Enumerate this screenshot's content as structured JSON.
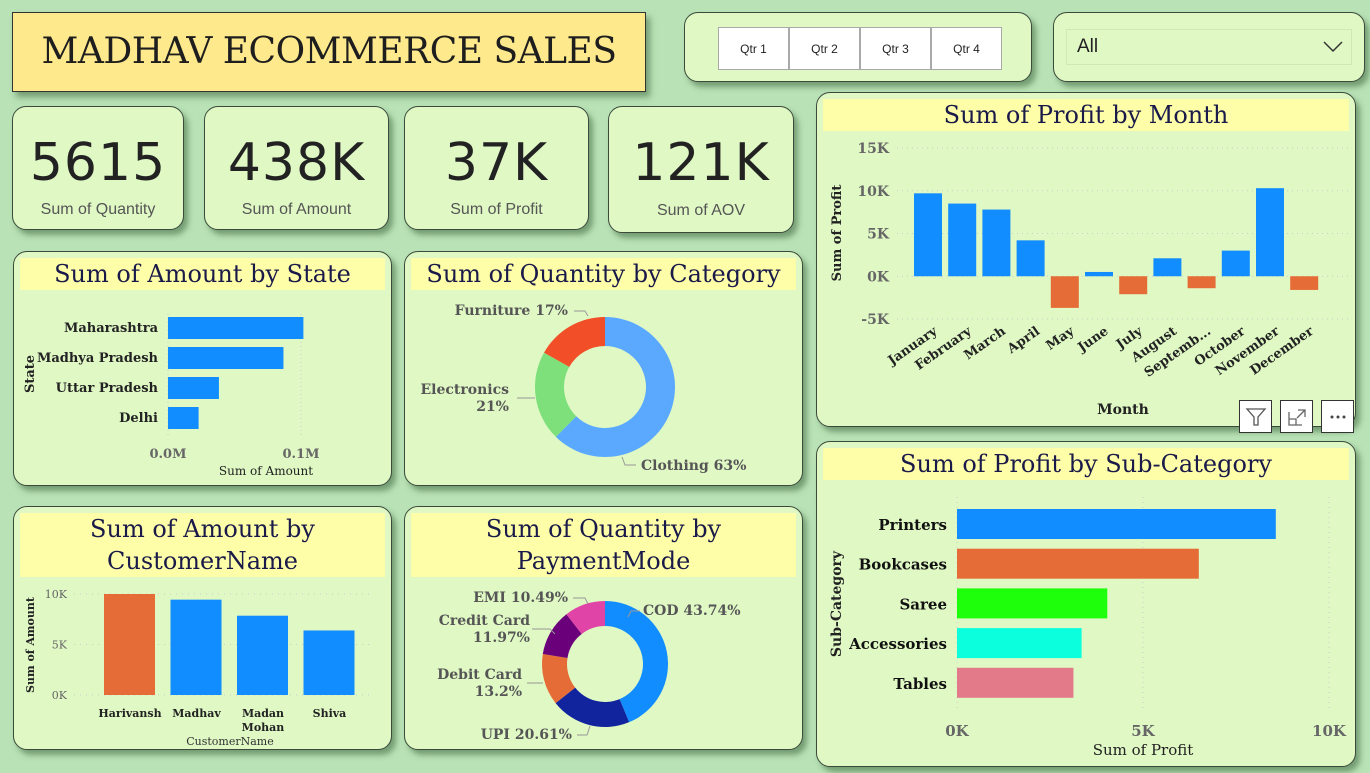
{
  "header": {
    "title": "MADHAV ECOMMERCE SALES"
  },
  "slicers": {
    "quarters": [
      "Qtr 1",
      "Qtr 2",
      "Qtr 3",
      "Qtr 4"
    ],
    "dropdown": {
      "selected": "All",
      "icon": "chevron-down-icon"
    }
  },
  "kpis": [
    {
      "value": "5615",
      "label": "Sum of Quantity"
    },
    {
      "value": "438K",
      "label": "Sum of Amount"
    },
    {
      "value": "37K",
      "label": "Sum of Profit"
    },
    {
      "value": "121K",
      "label": "Sum of AOV"
    }
  ],
  "visual_header": {
    "icons": [
      "filter-icon",
      "focus-mode-icon",
      "more-options-icon"
    ]
  },
  "colors": {
    "blue": "#118dff",
    "orange": "#e66c37",
    "background": "#b9e2b6",
    "card": "#dff8c4",
    "title_band": "#fefea8"
  },
  "chart_data": [
    {
      "id": "state",
      "type": "bar",
      "orientation": "horizontal",
      "title": "Sum of Amount by State",
      "xlabel": "Sum of Amount",
      "ylabel": "State",
      "categories": [
        "Maharashtra",
        "Madhya Pradesh",
        "Uttar Pradesh",
        "Delhi"
      ],
      "values": [
        101800,
        86800,
        38300,
        23000
      ],
      "xlim": [
        0,
        100000
      ],
      "xticks": [
        "0.0M",
        "0.1M"
      ],
      "grid": true
    },
    {
      "id": "category",
      "type": "pie",
      "donut": true,
      "title": "Sum of Quantity by Category",
      "labels": [
        "Clothing",
        "Electronics",
        "Furniture"
      ],
      "values": [
        63,
        21,
        17
      ],
      "display_labels": [
        "Clothing 63%",
        "Electronics 21%",
        "Furniture 17%"
      ],
      "colors": [
        "#5ba9ff",
        "#7de07a",
        "#f24f28"
      ]
    },
    {
      "id": "month",
      "type": "bar",
      "title": "Sum of Profit by Month",
      "xlabel": "Month",
      "ylabel": "Sum of Profit",
      "categories": [
        "January",
        "February",
        "March",
        "April",
        "May",
        "June",
        "July",
        "August",
        "Septemb...",
        "October",
        "November",
        "December"
      ],
      "values": [
        9700,
        8500,
        7800,
        4200,
        -3700,
        500,
        -2100,
        2100,
        -1400,
        3000,
        10300,
        -1600
      ],
      "ylim": [
        -5000,
        15000
      ],
      "yticks": [
        "-5K",
        "0K",
        "5K",
        "10K",
        "15K"
      ],
      "positive_color": "#118dff",
      "negative_color": "#e66c37",
      "grid": true
    },
    {
      "id": "subcategory",
      "type": "bar",
      "orientation": "horizontal",
      "title": "Sum of Profit by Sub-Category",
      "xlabel": "Sum of Profit",
      "ylabel": "Sub-Category",
      "categories": [
        "Printers",
        "Bookcases",
        "Saree",
        "Accessories",
        "Tables"
      ],
      "values": [
        8570,
        6500,
        4040,
        3350,
        3130
      ],
      "colors": [
        "#118dff",
        "#e66c37",
        "#1eff0c",
        "#0cffdd",
        "#e27a89"
      ],
      "xlim": [
        0,
        10000
      ],
      "xticks": [
        "0K",
        "5K",
        "10K"
      ],
      "grid": true
    },
    {
      "id": "customer",
      "type": "bar",
      "title": "Sum of Amount by CustomerName",
      "xlabel": "CustomerName",
      "ylabel": "Sum of Amount",
      "categories": [
        "Harivansh",
        "Madhav",
        "Madan Mohan",
        "Shiva"
      ],
      "values": [
        10000,
        9440,
        7850,
        6390
      ],
      "colors": [
        "#e66c37",
        "#118dff",
        "#118dff",
        "#118dff"
      ],
      "ylim": [
        0,
        10000
      ],
      "yticks": [
        "0K",
        "5K",
        "10K"
      ],
      "grid": true
    },
    {
      "id": "payment",
      "type": "pie",
      "donut": true,
      "title": "Sum of Quantity by PaymentMode",
      "labels": [
        "COD",
        "UPI",
        "Debit Card",
        "Credit Card",
        "EMI"
      ],
      "values": [
        43.74,
        20.61,
        13.2,
        11.97,
        10.49
      ],
      "display_labels": [
        "COD 43.74%",
        "UPI 20.61%",
        "Debit Card 13.2%",
        "Credit Card 11.97%",
        "EMI 10.49%"
      ],
      "colors": [
        "#118dff",
        "#12239e",
        "#e66c37",
        "#6b007b",
        "#e044a7"
      ]
    }
  ]
}
